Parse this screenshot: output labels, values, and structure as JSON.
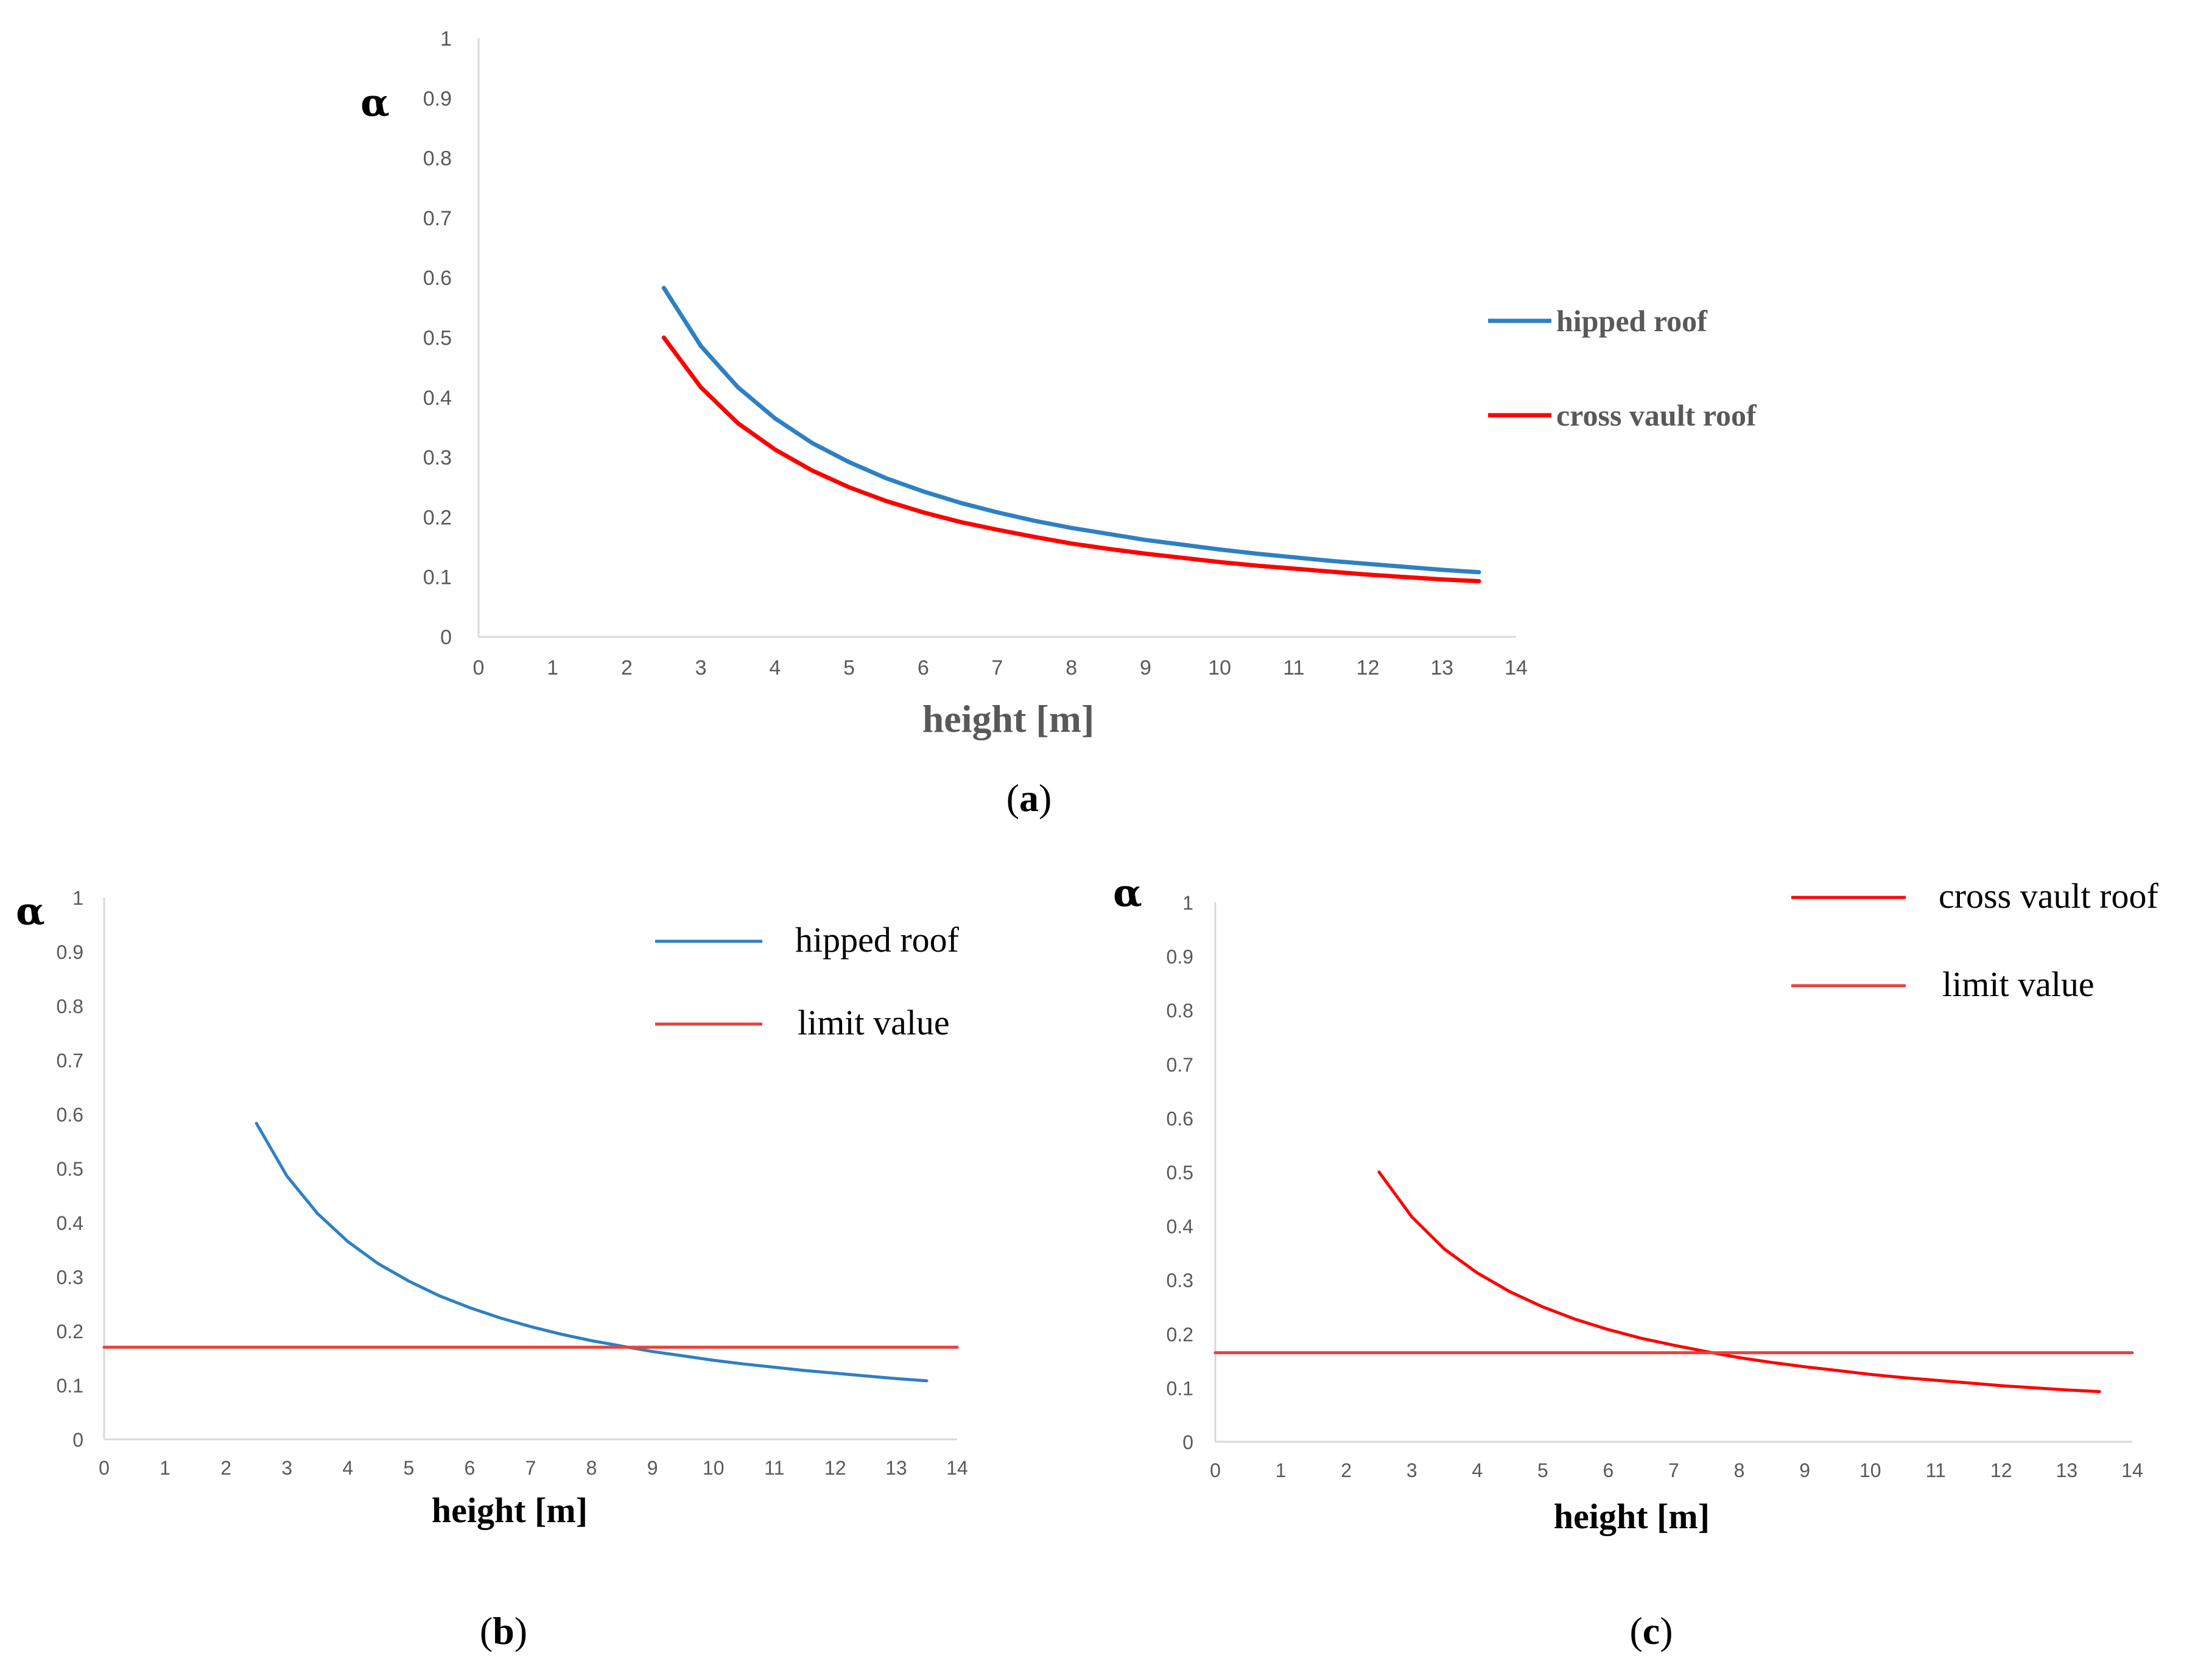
{
  "chart_data": [
    {
      "id": "a",
      "type": "line",
      "panel_label": "a",
      "xlabel": "height [m]",
      "ylabel": "α",
      "xlim": [
        0,
        14
      ],
      "ylim": [
        0,
        1
      ],
      "xticks": [
        "0",
        "1",
        "2",
        "3",
        "4",
        "5",
        "6",
        "7",
        "8",
        "9",
        "10",
        "11",
        "12",
        "13",
        "14"
      ],
      "yticks": [
        "0",
        "0.1",
        "0.2",
        "0.3",
        "0.4",
        "0.5",
        "0.6",
        "0.7",
        "0.8",
        "0.9",
        "1"
      ],
      "grid": false,
      "legend_position": "right",
      "series": [
        {
          "name": "hipped roof",
          "color": "#2E80C2",
          "x": [
            2.5,
            3,
            3.5,
            4,
            4.5,
            5,
            5.5,
            6,
            6.5,
            7,
            7.5,
            8,
            8.5,
            9,
            9.5,
            10,
            10.5,
            11,
            11.5,
            12,
            12.5,
            13,
            13.5
          ],
          "y": [
            0.583,
            0.486,
            0.417,
            0.365,
            0.324,
            0.292,
            0.265,
            0.243,
            0.224,
            0.208,
            0.194,
            0.182,
            0.172,
            0.162,
            0.154,
            0.146,
            0.139,
            0.133,
            0.127,
            0.122,
            0.117,
            0.112,
            0.108
          ]
        },
        {
          "name": "cross vault roof",
          "color": "#FF0000",
          "x": [
            2.5,
            3,
            3.5,
            4,
            4.5,
            5,
            5.5,
            6,
            6.5,
            7,
            7.5,
            8,
            8.5,
            9,
            9.5,
            10,
            10.5,
            11,
            11.5,
            12,
            12.5,
            13,
            13.5
          ],
          "y": [
            0.5,
            0.417,
            0.357,
            0.313,
            0.278,
            0.25,
            0.227,
            0.208,
            0.192,
            0.179,
            0.167,
            0.156,
            0.147,
            0.139,
            0.132,
            0.125,
            0.119,
            0.114,
            0.109,
            0.104,
            0.1,
            0.096,
            0.093
          ]
        }
      ]
    },
    {
      "id": "b",
      "type": "line",
      "panel_label": "b",
      "xlabel": "height [m]",
      "ylabel": "α",
      "xlim": [
        0,
        14
      ],
      "ylim": [
        0,
        1
      ],
      "xticks": [
        "0",
        "1",
        "2",
        "3",
        "4",
        "5",
        "6",
        "7",
        "8",
        "9",
        "10",
        "11",
        "12",
        "13",
        "14"
      ],
      "yticks": [
        "0",
        "0.1",
        "0.2",
        "0.3",
        "0.4",
        "0.5",
        "0.6",
        "0.7",
        "0.8",
        "0.9",
        "1"
      ],
      "grid": false,
      "legend_position": "top-right",
      "series": [
        {
          "name": "hipped roof",
          "color": "#2E80C2",
          "x": [
            2.5,
            3,
            3.5,
            4,
            4.5,
            5,
            5.5,
            6,
            6.5,
            7,
            7.5,
            8,
            8.5,
            9,
            9.5,
            10,
            10.5,
            11,
            11.5,
            12,
            12.5,
            13,
            13.5
          ],
          "y": [
            0.583,
            0.486,
            0.417,
            0.365,
            0.324,
            0.292,
            0.265,
            0.243,
            0.224,
            0.208,
            0.194,
            0.182,
            0.172,
            0.162,
            0.154,
            0.146,
            0.139,
            0.133,
            0.127,
            0.122,
            0.117,
            0.112,
            0.108
          ]
        },
        {
          "name": "limit value",
          "color": "#E8413C",
          "x": [
            0,
            14
          ],
          "y": [
            0.17,
            0.17
          ]
        }
      ]
    },
    {
      "id": "c",
      "type": "line",
      "panel_label": "c",
      "xlabel": "height [m]",
      "ylabel": "α",
      "xlim": [
        0,
        14
      ],
      "ylim": [
        0,
        1
      ],
      "xticks": [
        "0",
        "1",
        "2",
        "3",
        "4",
        "5",
        "6",
        "7",
        "8",
        "9",
        "10",
        "11",
        "12",
        "13",
        "14"
      ],
      "yticks": [
        "0",
        "0.1",
        "0.2",
        "0.3",
        "0.4",
        "0.5",
        "0.6",
        "0.7",
        "0.8",
        "0.9",
        "1"
      ],
      "grid": false,
      "legend_position": "top-right",
      "series": [
        {
          "name": "cross vault roof",
          "color": "#FF0000",
          "x": [
            2.5,
            3,
            3.5,
            4,
            4.5,
            5,
            5.5,
            6,
            6.5,
            7,
            7.5,
            8,
            8.5,
            9,
            9.5,
            10,
            10.5,
            11,
            11.5,
            12,
            12.5,
            13,
            13.5
          ],
          "y": [
            0.5,
            0.417,
            0.357,
            0.313,
            0.278,
            0.25,
            0.227,
            0.208,
            0.192,
            0.179,
            0.167,
            0.156,
            0.147,
            0.139,
            0.132,
            0.125,
            0.119,
            0.114,
            0.109,
            0.104,
            0.1,
            0.096,
            0.093
          ]
        },
        {
          "name": "limit value",
          "color": "#E8413C",
          "x": [
            0,
            14
          ],
          "y": [
            0.165,
            0.165
          ]
        }
      ]
    }
  ]
}
